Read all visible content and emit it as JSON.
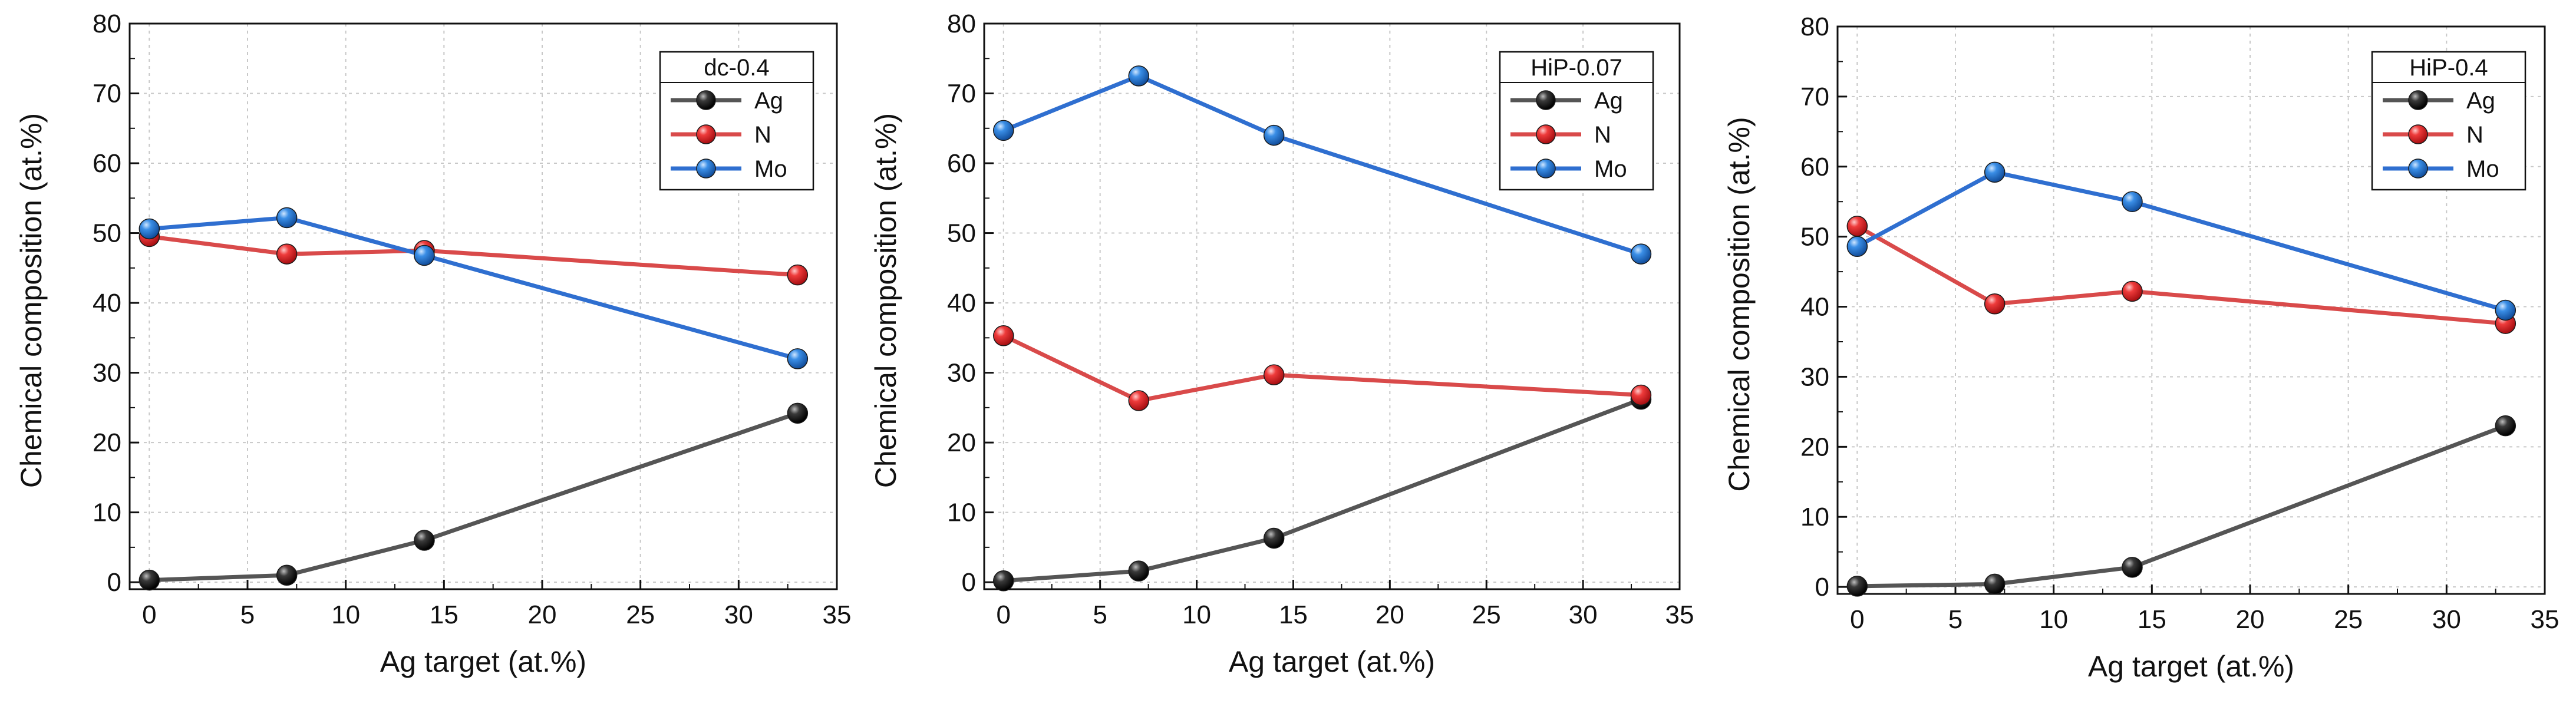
{
  "chart_data": [
    {
      "type": "line",
      "legend_title": "dc-0.4",
      "legend_position": "top-right",
      "xlabel": "Ag target (at.%)",
      "ylabel": "Chemical composition (at.%)",
      "xlim": [
        -1,
        35
      ],
      "ylim": [
        -1,
        80
      ],
      "xticks": [
        0,
        5,
        10,
        15,
        20,
        25,
        30,
        35
      ],
      "yticks": [
        0,
        10,
        20,
        30,
        40,
        50,
        60,
        70,
        80
      ],
      "xtick_labels": [
        "0",
        "5",
        "10",
        "15",
        "20",
        "25",
        "30",
        "35"
      ],
      "ytick_labels": [
        "0",
        "10",
        "20",
        "30",
        "40",
        "50",
        "60",
        "70",
        "80"
      ],
      "grid": true,
      "x": [
        0,
        7,
        14,
        33
      ],
      "series": [
        {
          "name": "Ag",
          "values": [
            0.3,
            1.0,
            6.0,
            24.2
          ]
        },
        {
          "name": "N",
          "values": [
            49.5,
            47.0,
            47.5,
            44.0
          ]
        },
        {
          "name": "Mo",
          "values": [
            50.6,
            52.2,
            46.8,
            32.0
          ]
        }
      ]
    },
    {
      "type": "line",
      "legend_title": "HiP-0.07",
      "legend_position": "top-right",
      "xlabel": "Ag target (at.%)",
      "ylabel": "Chemical composition (at.%)",
      "xlim": [
        -1,
        35
      ],
      "ylim": [
        -1,
        80
      ],
      "xticks": [
        0,
        5,
        10,
        15,
        20,
        25,
        30,
        35
      ],
      "yticks": [
        0,
        10,
        20,
        30,
        40,
        50,
        60,
        70,
        80
      ],
      "xtick_labels": [
        "0",
        "5",
        "10",
        "15",
        "20",
        "25",
        "30",
        "35"
      ],
      "ytick_labels": [
        "0",
        "10",
        "20",
        "30",
        "40",
        "50",
        "60",
        "70",
        "80"
      ],
      "grid": true,
      "x": [
        0,
        7,
        14,
        33
      ],
      "series": [
        {
          "name": "Ag",
          "values": [
            0.2,
            1.6,
            6.3,
            26.2
          ]
        },
        {
          "name": "N",
          "values": [
            35.3,
            26.0,
            29.7,
            26.8
          ]
        },
        {
          "name": "Mo",
          "values": [
            64.7,
            72.5,
            64.0,
            47.0
          ]
        }
      ]
    },
    {
      "type": "line",
      "legend_title": "HiP-0.4",
      "legend_position": "top-right",
      "xlabel": "Ag target (at.%)",
      "ylabel": "Chemical composition (at.%)",
      "xlim": [
        -1,
        35
      ],
      "ylim": [
        -1,
        80
      ],
      "xticks": [
        0,
        5,
        10,
        15,
        20,
        25,
        30,
        35
      ],
      "yticks": [
        0,
        10,
        20,
        30,
        40,
        50,
        60,
        70,
        80
      ],
      "xtick_labels": [
        "0",
        "5",
        "10",
        "15",
        "20",
        "25",
        "30",
        "35"
      ],
      "ytick_labels": [
        "0",
        "10",
        "20",
        "30",
        "40",
        "50",
        "60",
        "70",
        "80"
      ],
      "grid": true,
      "x": [
        0,
        7,
        14,
        33
      ],
      "series": [
        {
          "name": "Ag",
          "values": [
            0.1,
            0.4,
            2.8,
            23.0
          ]
        },
        {
          "name": "N",
          "values": [
            51.5,
            40.4,
            42.2,
            37.6
          ]
        },
        {
          "name": "Mo",
          "values": [
            48.6,
            59.2,
            55.0,
            39.5
          ]
        }
      ]
    }
  ],
  "colors": {
    "Ag": "#2b2b2b",
    "N": "#e03a3e",
    "Mo": "#2f7ad4",
    "Ag_line": "#555555",
    "N_line": "#d94a4a",
    "Mo_line": "#2f6fd0",
    "grid": "#c8c8c8",
    "axis": "#111111"
  }
}
